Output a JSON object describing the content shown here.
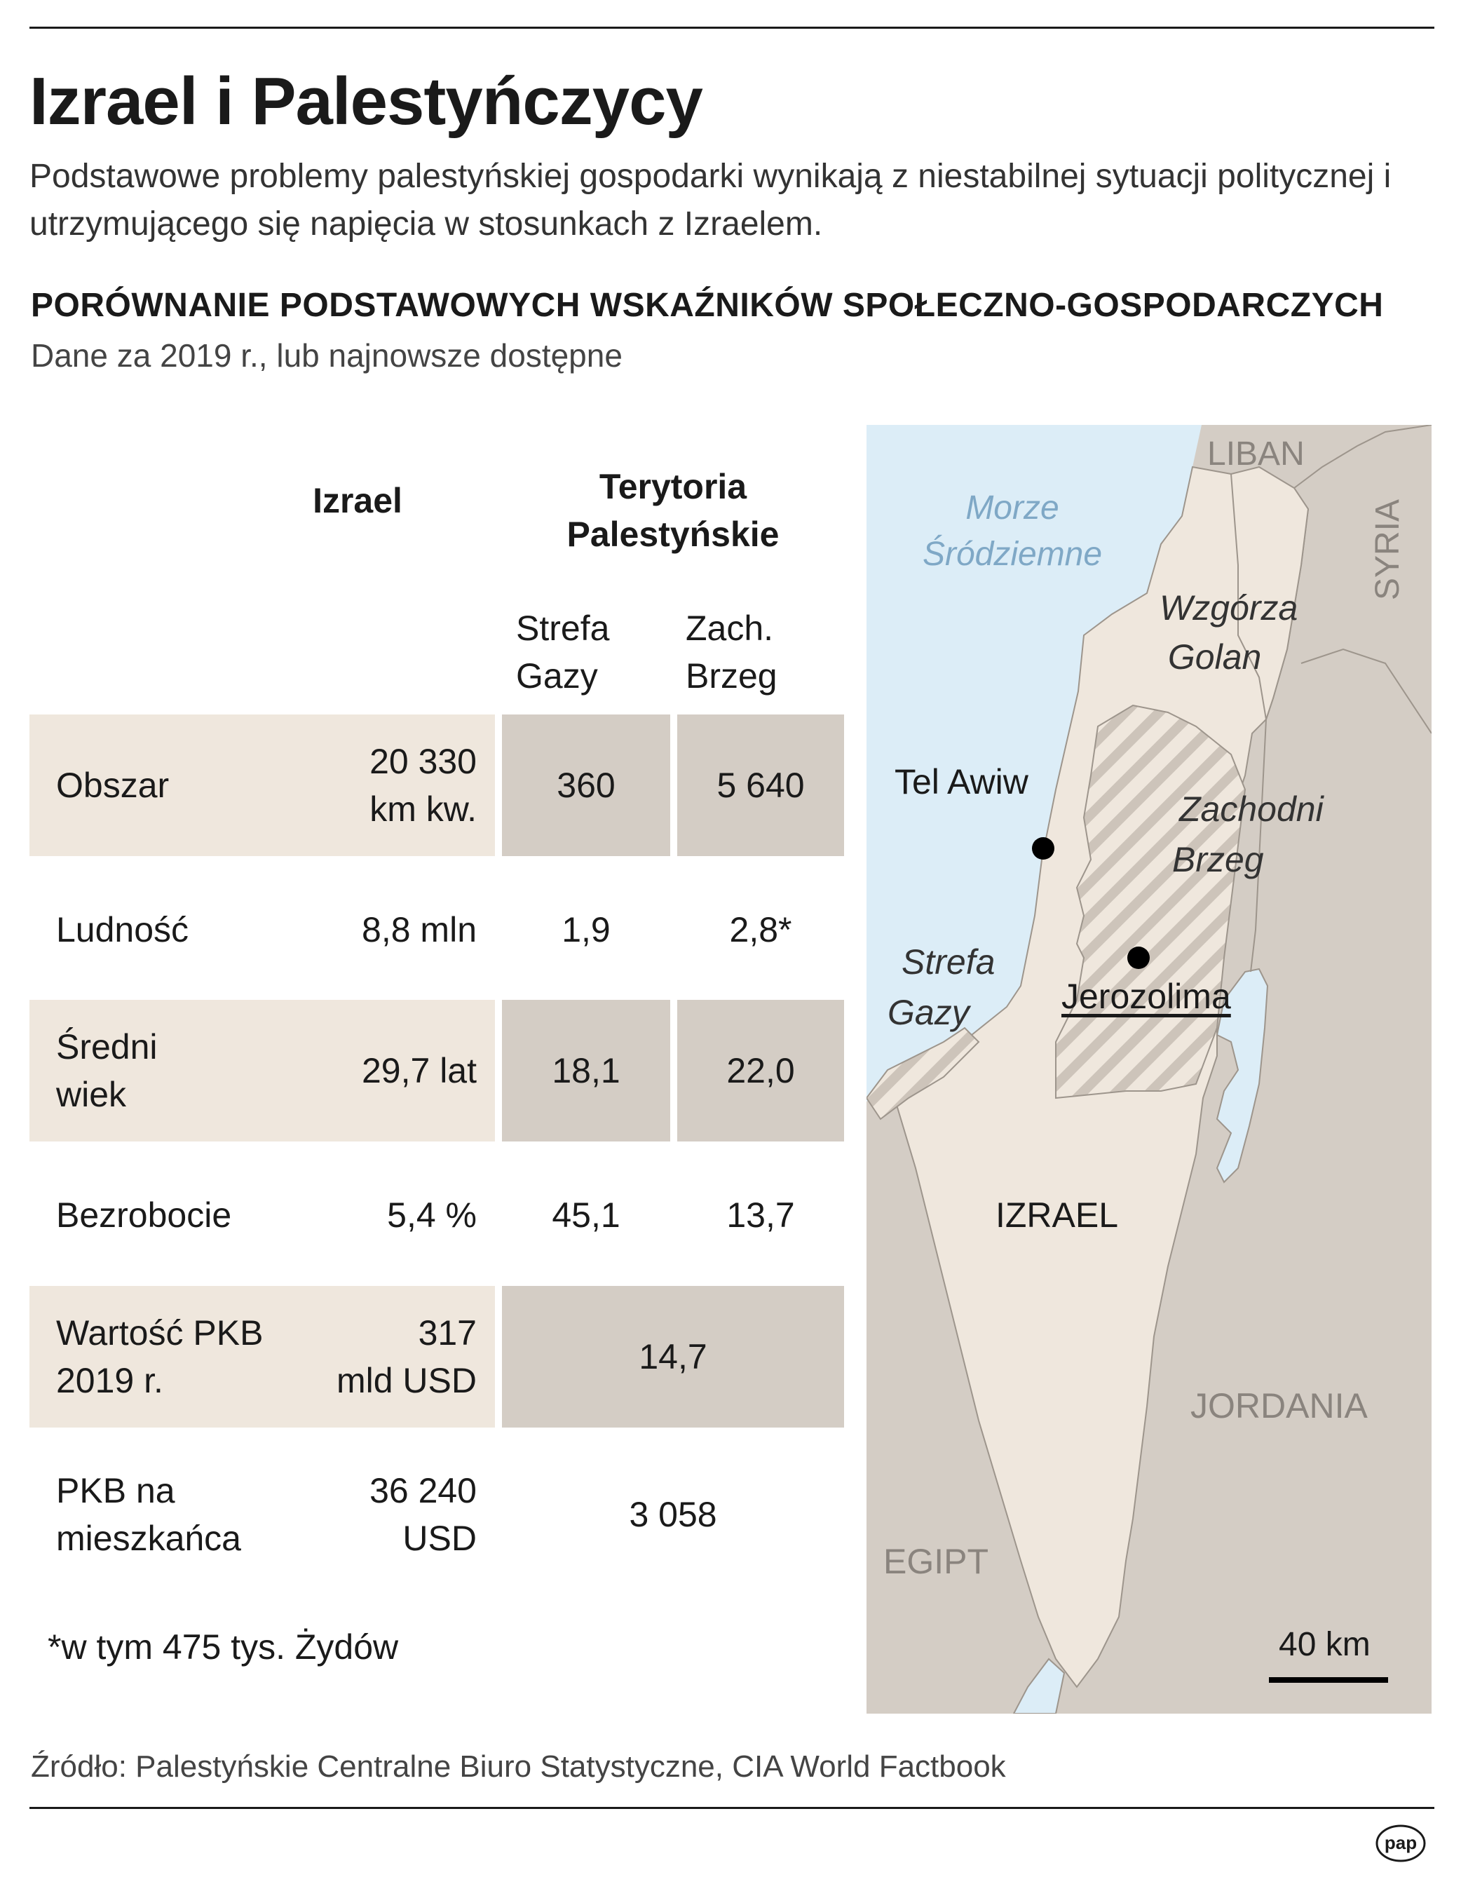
{
  "header": {
    "title": "Izrael i Palestyńczycy",
    "subtitle": "Podstawowe problemy palestyńskiej gospodarki wynikają z niestabilnej sytuacji politycznej i utrzymującego się napięcia w stosunkach z Izraelem."
  },
  "section": {
    "heading": "PORÓWNANIE PODSTAWOWYCH WSKAŹNIKÓW SPOŁECZNO-GOSPODARCZYCH",
    "note": "Dane za 2019 r., lub najnowsze dostępne"
  },
  "table": {
    "col_izrael": "Izrael",
    "col_territories_line1": "Terytoria",
    "col_territories_line2": "Palestyńskie",
    "col_gaza_line1": "Strefa",
    "col_gaza_line2": "Gazy",
    "col_westbank_line1": "Zach.",
    "col_westbank_line2": "Brzeg",
    "rows": [
      {
        "label1": "Obszar",
        "label2": "",
        "izrael1": "20 330",
        "izrael2": "km kw.",
        "gaza": "360",
        "westbank": "5 640"
      },
      {
        "label1": "Ludność",
        "label2": "",
        "izrael1": "8,8 mln",
        "izrael2": "",
        "gaza": "1,9",
        "westbank": "2,8*"
      },
      {
        "label1": "Średni",
        "label2": "wiek",
        "izrael1": "29,7 lat",
        "izrael2": "",
        "gaza": "18,1",
        "westbank": "22,0"
      },
      {
        "label1": "Bezrobocie",
        "label2": "",
        "izrael1": "5,4 %",
        "izrael2": "",
        "gaza": "45,1",
        "westbank": "13,7"
      },
      {
        "label1": "Wartość PKB",
        "label2": "2019 r.",
        "izrael1": "317",
        "izrael2": "mld USD",
        "territories": "14,7"
      },
      {
        "label1": "PKB na",
        "label2": "mieszkańca",
        "izrael1": "36 240",
        "izrael2": "USD",
        "territories": "3 058"
      }
    ],
    "footnote": "*w tym 475 tys. Żydów"
  },
  "map": {
    "labels": {
      "liban": "LIBAN",
      "syria": "SYRIA",
      "sea1": "Morze",
      "sea2": "Śródziemne",
      "golan1": "Wzgórza",
      "golan2": "Golan",
      "telaviv": "Tel Awiw",
      "westbank1": "Zachodni",
      "westbank2": "Brzeg",
      "gaza1": "Strefa",
      "gaza2": "Gazy",
      "jerusalem": "Jerozolima",
      "israel": "IZRAEL",
      "jordan": "JORDANIA",
      "egypt": "EGIPT",
      "scale": "40 km"
    },
    "colors": {
      "sea": "#dcedf7",
      "israel": "#efe7dd",
      "neighbors": "#d4cdc5",
      "border": "#9d958c"
    }
  },
  "footer": {
    "source": "Źródło: Palestyńskie Centralne Biuro Statystyczne, CIA World Factbook",
    "logo": "pap"
  }
}
